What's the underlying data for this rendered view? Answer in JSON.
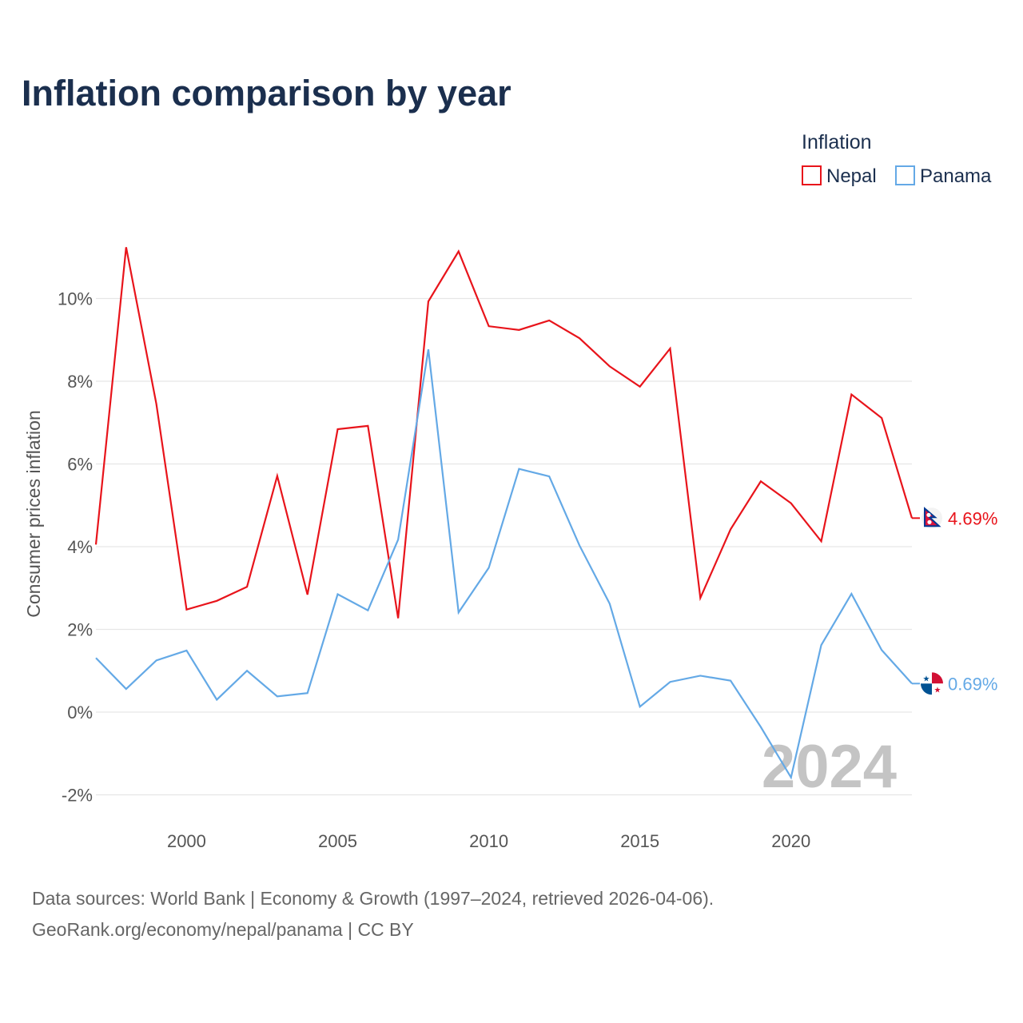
{
  "chart_data": {
    "type": "line",
    "title": "Inflation comparison by year",
    "legend_title": "Inflation",
    "ylabel": "Consumer prices inflation",
    "xlabel": "",
    "ylim": [
      -2.5,
      11.6
    ],
    "xlim": [
      1997,
      2024
    ],
    "y_ticks": [
      {
        "value": -2,
        "label": "-2%"
      },
      {
        "value": 0,
        "label": "0%"
      },
      {
        "value": 2,
        "label": "2%"
      },
      {
        "value": 4,
        "label": "4%"
      },
      {
        "value": 6,
        "label": "6%"
      },
      {
        "value": 8,
        "label": "8%"
      },
      {
        "value": 10,
        "label": "10%"
      }
    ],
    "x_ticks": [
      {
        "value": 2000,
        "label": "2000"
      },
      {
        "value": 2005,
        "label": "2005"
      },
      {
        "value": 2010,
        "label": "2010"
      },
      {
        "value": 2015,
        "label": "2015"
      },
      {
        "value": 2020,
        "label": "2020"
      }
    ],
    "x": [
      1997,
      1998,
      1999,
      2000,
      2001,
      2002,
      2003,
      2004,
      2005,
      2006,
      2007,
      2008,
      2009,
      2010,
      2011,
      2012,
      2013,
      2014,
      2015,
      2016,
      2017,
      2018,
      2019,
      2020,
      2021,
      2022,
      2023,
      2024
    ],
    "series": [
      {
        "name": "Nepal",
        "color": "#e8141b",
        "end_label": "4.69%",
        "values": [
          4.05,
          11.24,
          7.45,
          2.48,
          2.69,
          3.03,
          5.71,
          2.84,
          6.84,
          6.92,
          2.27,
          9.93,
          11.14,
          9.33,
          9.24,
          9.47,
          9.04,
          8.36,
          7.87,
          8.79,
          2.76,
          4.42,
          5.58,
          5.05,
          4.13,
          7.68,
          7.11,
          4.69
        ]
      },
      {
        "name": "Panama",
        "color": "#64a9e6",
        "end_label": "0.69%",
        "values": [
          1.31,
          0.56,
          1.25,
          1.49,
          0.3,
          1.0,
          0.38,
          0.46,
          2.85,
          2.46,
          4.17,
          8.77,
          2.41,
          3.49,
          5.88,
          5.7,
          4.03,
          2.62,
          0.13,
          0.73,
          0.88,
          0.76,
          -0.36,
          -1.58,
          1.62,
          2.86,
          1.5,
          0.69
        ]
      }
    ],
    "watermark_year": "2024"
  },
  "footer": {
    "line1": "Data sources: World Bank | Economy & Growth (1997–2024, retrieved 2026-04-06).",
    "line2": "GeoRank.org/economy/nepal/panama | CC BY"
  },
  "icons": {
    "nepal": "nepal-flag-icon",
    "panama": "panama-flag-icon"
  }
}
